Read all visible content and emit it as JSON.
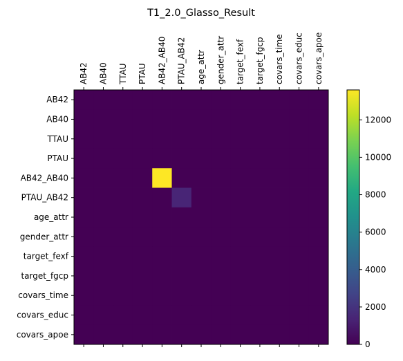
{
  "chart_data": {
    "type": "heatmap",
    "title": "T1_2.0_Glasso_Result",
    "x_categories": [
      "AB42",
      "AB40",
      "TTAU",
      "PTAU",
      "AB42_AB40",
      "PTAU_AB42",
      "age_attr",
      "gender_attr",
      "target_fexf",
      "target_fgcp",
      "covars_time",
      "covars_educ",
      "covars_apoe"
    ],
    "y_categories": [
      "AB42",
      "AB40",
      "TTAU",
      "PTAU",
      "AB42_AB40",
      "PTAU_AB42",
      "age_attr",
      "gender_attr",
      "target_fexf",
      "target_fgcp",
      "covars_time",
      "covars_educ",
      "covars_apoe"
    ],
    "values": [
      [
        0,
        0,
        0,
        0,
        0,
        0,
        0,
        0,
        0,
        0,
        0,
        0,
        0
      ],
      [
        0,
        0,
        0,
        0,
        0,
        0,
        0,
        0,
        0,
        0,
        0,
        0,
        0
      ],
      [
        0,
        0,
        0,
        0,
        0,
        0,
        0,
        0,
        0,
        0,
        0,
        0,
        0
      ],
      [
        0,
        0,
        0,
        0,
        0,
        0,
        0,
        0,
        0,
        0,
        0,
        0,
        0
      ],
      [
        0,
        0,
        0,
        0,
        13600,
        0,
        0,
        0,
        0,
        0,
        0,
        0,
        0
      ],
      [
        0,
        0,
        0,
        0,
        0,
        1400,
        0,
        0,
        0,
        0,
        0,
        0,
        0
      ],
      [
        0,
        0,
        0,
        0,
        0,
        0,
        0,
        0,
        0,
        0,
        0,
        0,
        0
      ],
      [
        0,
        0,
        0,
        0,
        0,
        0,
        0,
        0,
        0,
        0,
        0,
        0,
        0
      ],
      [
        0,
        0,
        0,
        0,
        0,
        0,
        0,
        0,
        0,
        0,
        0,
        0,
        0
      ],
      [
        0,
        0,
        0,
        0,
        0,
        0,
        0,
        0,
        0,
        0,
        0,
        0,
        0
      ],
      [
        0,
        0,
        0,
        0,
        0,
        0,
        0,
        0,
        0,
        0,
        0,
        0,
        0
      ],
      [
        0,
        0,
        0,
        0,
        0,
        0,
        0,
        0,
        0,
        0,
        0,
        0,
        0
      ],
      [
        0,
        0,
        0,
        0,
        0,
        0,
        0,
        0,
        0,
        0,
        0,
        0,
        0
      ]
    ],
    "colormap": "viridis",
    "colorbar": {
      "min": 0,
      "max": 13600,
      "ticks": [
        "0",
        "2000",
        "4000",
        "6000",
        "8000",
        "10000",
        "12000"
      ]
    },
    "x_tick_position": "top",
    "grid": false
  }
}
